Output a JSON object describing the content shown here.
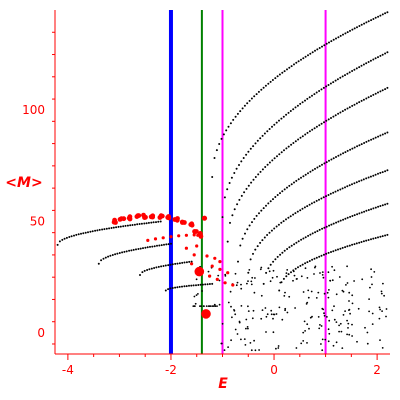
{
  "chart_data": {
    "type": "scatter",
    "title": "",
    "xlabel": "E",
    "ylabel": "<M>",
    "xlim": [
      -4.25,
      2.25
    ],
    "ylim": [
      -9.5,
      145
    ],
    "x_ticks": [
      -4,
      -2,
      0,
      2
    ],
    "x_tick_labels": [
      "-4",
      "-2",
      "0",
      "2"
    ],
    "y_ticks": [
      0,
      50,
      100
    ],
    "y_tick_labels": [
      "0",
      "50",
      "100"
    ],
    "colors": {
      "axes": "#ff0000",
      "black_points": "#000000",
      "red_points": "#ff0000",
      "line_blue": "#0000ff",
      "line_green": "#008000",
      "line_magenta": "#ff00ff"
    },
    "vertical_lines": [
      {
        "x": -2.0,
        "color": "#0000ff",
        "weight": "thick"
      },
      {
        "x": -1.4,
        "color": "#008000",
        "weight": "normal"
      },
      {
        "x": -1.0,
        "color": "#ff00ff",
        "weight": "normal"
      },
      {
        "x": 1.0,
        "color": "#ff00ff",
        "weight": "normal"
      }
    ],
    "black_curves": [
      {
        "x_start": -4.2,
        "y_start": 39.5,
        "x_end": -2.2,
        "y_end": 50,
        "shape": "concave"
      },
      {
        "x_start": -3.4,
        "y_start": 31,
        "x_end": -2.0,
        "y_end": 40,
        "shape": "concave"
      },
      {
        "x_start": -2.6,
        "y_start": 26,
        "x_end": -1.6,
        "y_end": 32,
        "shape": "concave"
      },
      {
        "x_start": -2.1,
        "y_start": 19,
        "x_end": -1.2,
        "y_end": 22,
        "shape": "concave"
      },
      {
        "x_start": -1.2,
        "y_start": 70,
        "x_end": 2.2,
        "y_end": 144,
        "shape": "concave"
      },
      {
        "x_start": -1.0,
        "y_start": 52,
        "x_end": 2.2,
        "y_end": 126,
        "shape": "concave"
      },
      {
        "x_start": -0.9,
        "y_start": 41,
        "x_end": 2.2,
        "y_end": 110,
        "shape": "concave"
      },
      {
        "x_start": -0.7,
        "y_start": 32,
        "x_end": 2.2,
        "y_end": 90,
        "shape": "concave"
      },
      {
        "x_start": -0.5,
        "y_start": 27,
        "x_end": 2.2,
        "y_end": 73,
        "shape": "concave"
      },
      {
        "x_start": -0.2,
        "y_start": 22,
        "x_end": 2.2,
        "y_end": 58,
        "shape": "concave"
      },
      {
        "x_start": 0.1,
        "y_start": 19,
        "x_end": 2.2,
        "y_end": 44,
        "shape": "concave"
      }
    ],
    "black_cloud": {
      "x_range": [
        -1.6,
        2.2
      ],
      "y_range": [
        -8,
        30
      ],
      "count": 240
    },
    "red_arc": [
      [
        -3.1,
        50
      ],
      [
        -2.95,
        50.8
      ],
      [
        -2.8,
        51.5
      ],
      [
        -2.65,
        52
      ],
      [
        -2.5,
        52.4
      ],
      [
        -2.35,
        52.5
      ],
      [
        -2.2,
        52.2
      ],
      [
        -2.05,
        51.6
      ],
      [
        -1.9,
        51
      ],
      [
        -1.75,
        50
      ],
      [
        -1.62,
        48.5
      ],
      [
        -1.52,
        46
      ],
      [
        -1.45,
        44
      ]
    ],
    "red_points": [
      {
        "x": -2.45,
        "y": 41.5
      },
      {
        "x": -2.3,
        "y": 42.2
      },
      {
        "x": -2.15,
        "y": 42.7
      },
      {
        "x": -2.0,
        "y": 43.2
      },
      {
        "x": -1.85,
        "y": 43.6
      },
      {
        "x": -1.7,
        "y": 43.8
      },
      {
        "x": -1.55,
        "y": 44
      },
      {
        "x": -1.48,
        "y": 43.8
      },
      {
        "x": -1.35,
        "y": 51.5
      },
      {
        "x": -1.45,
        "y": 27.5
      },
      {
        "x": -1.32,
        "y": 8.5
      },
      {
        "x": -1.55,
        "y": 35
      },
      {
        "x": -1.3,
        "y": 34.5
      },
      {
        "x": -1.15,
        "y": 33.5
      },
      {
        "x": -1.05,
        "y": 32
      },
      {
        "x": -1.6,
        "y": 31
      },
      {
        "x": -1.2,
        "y": 30
      },
      {
        "x": -1.05,
        "y": 28.5
      },
      {
        "x": -0.9,
        "y": 27
      },
      {
        "x": -1.25,
        "y": 25.5
      },
      {
        "x": -1.1,
        "y": 24
      },
      {
        "x": -0.95,
        "y": 22.5
      },
      {
        "x": -0.8,
        "y": 21.5
      },
      {
        "x": -1.7,
        "y": 38
      },
      {
        "x": -1.5,
        "y": 39
      }
    ],
    "red_point_sizes": {
      "-1.35": 2.6,
      "-1.45": 4.8,
      "-1.32": 4.8
    }
  }
}
